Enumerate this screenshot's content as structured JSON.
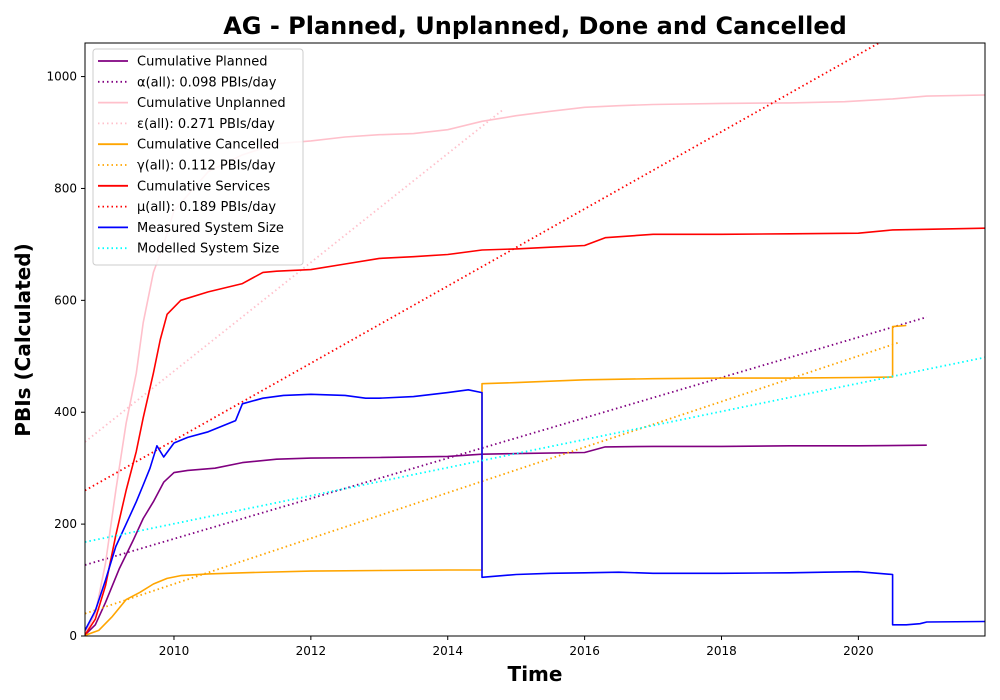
{
  "chart_data": {
    "type": "line",
    "title": "AG - Planned, Unplanned, Done  and Cancelled",
    "xlabel": "Time",
    "ylabel": "PBIs (Calculated)",
    "xlim": [
      2008.7,
      2021.85
    ],
    "ylim": [
      0,
      1060
    ],
    "xticks": [
      2010,
      2012,
      2014,
      2016,
      2018,
      2020
    ],
    "yticks": [
      0,
      200,
      400,
      600,
      800,
      1000
    ],
    "grid": false,
    "legend_position": "top-left",
    "series": [
      {
        "name": "Cumulative Planned",
        "color": "#800080",
        "style": "solid",
        "x": [
          2008.7,
          2008.85,
          2009.0,
          2009.2,
          2009.4,
          2009.55,
          2009.7,
          2009.85,
          2010.0,
          2010.2,
          2010.6,
          2011.0,
          2011.5,
          2012.0,
          2013.0,
          2014.0,
          2014.5,
          2015.0,
          2016.0,
          2016.3,
          2017.0,
          2018.0,
          2019.0,
          2020.0,
          2021.0
        ],
        "y": [
          2,
          20,
          60,
          120,
          170,
          210,
          240,
          275,
          292,
          296,
          300,
          310,
          316,
          318,
          319,
          321,
          325,
          326,
          328,
          338,
          339,
          339,
          340,
          340,
          341
        ]
      },
      {
        "name": "α(all): 0.098 PBIs/day",
        "color": "#800080",
        "style": "dotted",
        "x": [
          2008.7,
          2021.0
        ],
        "y": [
          127,
          570
        ]
      },
      {
        "name": "Cumulative Unplanned",
        "color": "#ffc0cb",
        "style": "solid",
        "x": [
          2008.7,
          2008.85,
          2009.0,
          2009.15,
          2009.3,
          2009.45,
          2009.55,
          2009.7,
          2009.85,
          2010.0,
          2010.5,
          2011.0,
          2011.5,
          2012.0,
          2012.5,
          2013.0,
          2013.5,
          2014.0,
          2014.5,
          2015.0,
          2015.5,
          2016.0,
          2016.5,
          2017.0,
          2018.0,
          2019.0,
          2019.8,
          2020.5,
          2021.0,
          2021.85
        ],
        "y": [
          5,
          40,
          130,
          260,
          380,
          470,
          560,
          650,
          700,
          760,
          830,
          860,
          880,
          885,
          892,
          896,
          898,
          905,
          920,
          930,
          938,
          945,
          948,
          950,
          952,
          953,
          955,
          960,
          965,
          967
        ]
      },
      {
        "name": "ε(all): 0.271 PBIs/day",
        "color": "#ffc0cb",
        "style": "dotted",
        "x": [
          2008.7,
          2014.8
        ],
        "y": [
          347,
          940
        ]
      },
      {
        "name": "Cumulative Cancelled",
        "color": "#ffa500",
        "style": "solid",
        "x": [
          2008.7,
          2008.9,
          2009.1,
          2009.3,
          2009.5,
          2009.7,
          2009.9,
          2010.1,
          2010.5,
          2011.0,
          2012.0,
          2013.0,
          2014.0,
          2014.5,
          2014.5,
          2015.0,
          2016.0,
          2017.0,
          2018.0,
          2019.0,
          2020.0,
          2020.5,
          2020.5,
          2020.7
        ],
        "y": [
          1,
          10,
          35,
          65,
          78,
          93,
          103,
          108,
          111,
          113,
          116,
          117,
          118,
          118,
          451,
          453,
          458,
          460,
          461,
          461,
          462,
          463,
          553,
          555
        ]
      },
      {
        "name": "γ(all): 0.112 PBIs/day",
        "color": "#ffa500",
        "style": "dotted",
        "x": [
          2008.7,
          2020.6
        ],
        "y": [
          40,
          525
        ]
      },
      {
        "name": "Cumulative Services",
        "color": "#ff0000",
        "style": "solid",
        "x": [
          2008.7,
          2008.85,
          2009.0,
          2009.15,
          2009.3,
          2009.45,
          2009.55,
          2009.7,
          2009.8,
          2009.9,
          2010.1,
          2010.5,
          2011.0,
          2011.3,
          2011.5,
          2012.0,
          2012.5,
          2013.0,
          2013.5,
          2014.0,
          2014.5,
          2015.0,
          2015.5,
          2016.0,
          2016.3,
          2017.0,
          2018.0,
          2019.0,
          2020.0,
          2020.5,
          2021.0,
          2021.85
        ],
        "y": [
          2,
          30,
          90,
          180,
          260,
          330,
          390,
          470,
          530,
          575,
          600,
          615,
          630,
          650,
          652,
          655,
          665,
          675,
          678,
          682,
          690,
          692,
          695,
          698,
          712,
          718,
          718,
          719,
          720,
          726,
          727,
          729
        ]
      },
      {
        "name": "μ(all): 0.189 PBIs/day",
        "color": "#ff0000",
        "style": "dotted",
        "x": [
          2008.7,
          2020.3
        ],
        "y": [
          260,
          1060
        ]
      },
      {
        "name": "Measured System Size",
        "color": "#0000ff",
        "style": "solid",
        "x": [
          2008.7,
          2008.85,
          2009.0,
          2009.15,
          2009.3,
          2009.45,
          2009.55,
          2009.65,
          2009.75,
          2009.85,
          2010.0,
          2010.2,
          2010.5,
          2010.9,
          2011.0,
          2011.3,
          2011.6,
          2012.0,
          2012.5,
          2012.8,
          2013.0,
          2013.5,
          2014.0,
          2014.3,
          2014.5,
          2014.5,
          2015.0,
          2015.5,
          2016.0,
          2016.5,
          2017.0,
          2018.0,
          2019.0,
          2019.5,
          2020.0,
          2020.5,
          2020.5,
          2020.7,
          2020.9,
          2021.0,
          2021.85
        ],
        "y": [
          10,
          45,
          100,
          160,
          200,
          240,
          270,
          300,
          340,
          320,
          345,
          355,
          365,
          385,
          415,
          425,
          430,
          432,
          430,
          425,
          425,
          428,
          435,
          440,
          435,
          105,
          110,
          112,
          113,
          114,
          112,
          112,
          113,
          114,
          115,
          110,
          20,
          20,
          22,
          25,
          26
        ]
      },
      {
        "name": "Modelled System Size",
        "color": "#00ffff",
        "style": "dotted",
        "x": [
          2008.7,
          2021.85
        ],
        "y": [
          168,
          498
        ]
      }
    ]
  }
}
